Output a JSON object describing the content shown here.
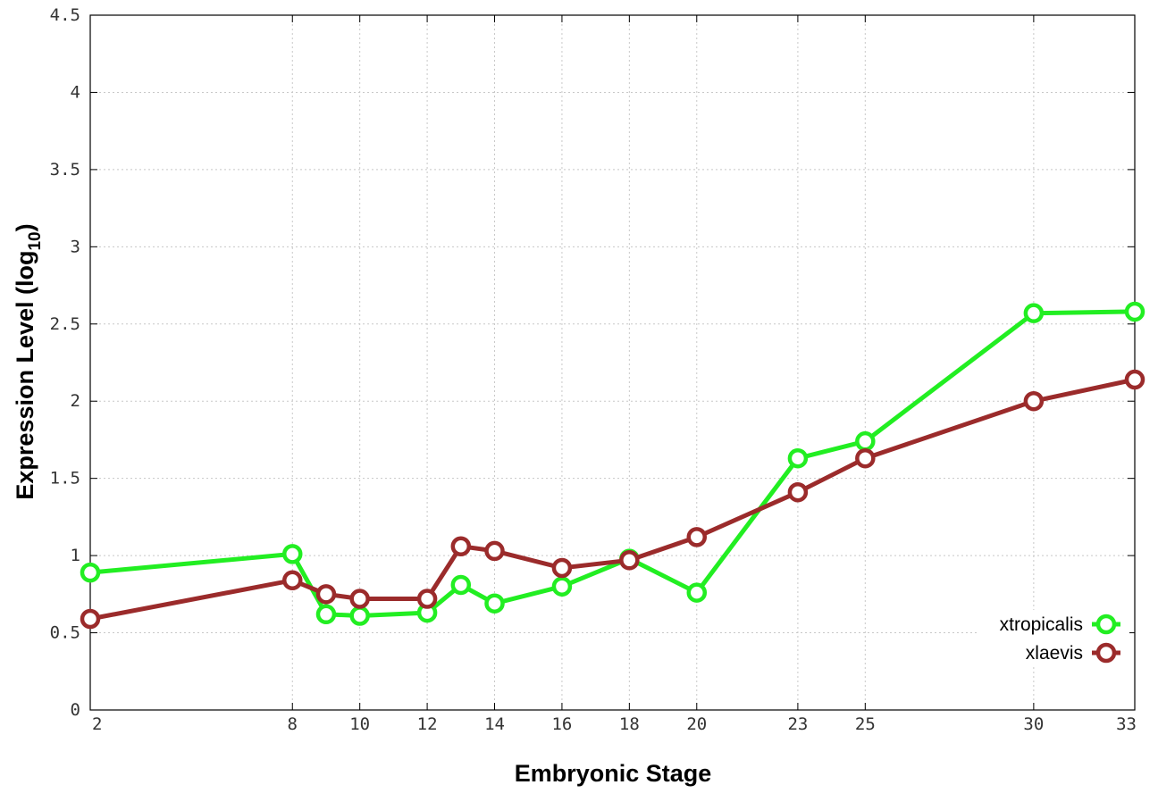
{
  "chart_data": {
    "type": "line",
    "xlabel": "Embryonic Stage",
    "ylabel_main": "Expression Level (log",
    "ylabel_sub": "10",
    "ylabel_close": ")",
    "x_ticks": [
      2,
      8,
      10,
      12,
      14,
      16,
      18,
      20,
      23,
      25,
      30,
      33
    ],
    "y_ticks": [
      "0",
      "0.5",
      "1",
      "1.5",
      "2",
      "2.5",
      "3",
      "3.5",
      "4",
      "4.5"
    ],
    "xlim": [
      2,
      33
    ],
    "ylim": [
      0,
      4.5
    ],
    "grid": true,
    "legend_position": "bottom-right",
    "series": [
      {
        "name": "xtropicalis",
        "color": "#22ee22",
        "x": [
          2,
          8,
          9,
          10,
          12,
          13,
          14,
          16,
          18,
          20,
          23,
          25,
          30,
          33
        ],
        "values": [
          0.89,
          1.01,
          0.62,
          0.61,
          0.63,
          0.81,
          0.69,
          0.8,
          0.98,
          0.76,
          1.63,
          1.74,
          2.57,
          2.58
        ]
      },
      {
        "name": "xlaevis",
        "color": "#9b2b2b",
        "x": [
          2,
          8,
          9,
          10,
          12,
          13,
          14,
          16,
          18,
          20,
          23,
          25,
          30,
          33
        ],
        "values": [
          0.59,
          0.84,
          0.75,
          0.72,
          0.72,
          1.06,
          1.03,
          0.92,
          0.97,
          1.12,
          1.41,
          1.63,
          2.0,
          2.14
        ]
      }
    ]
  }
}
